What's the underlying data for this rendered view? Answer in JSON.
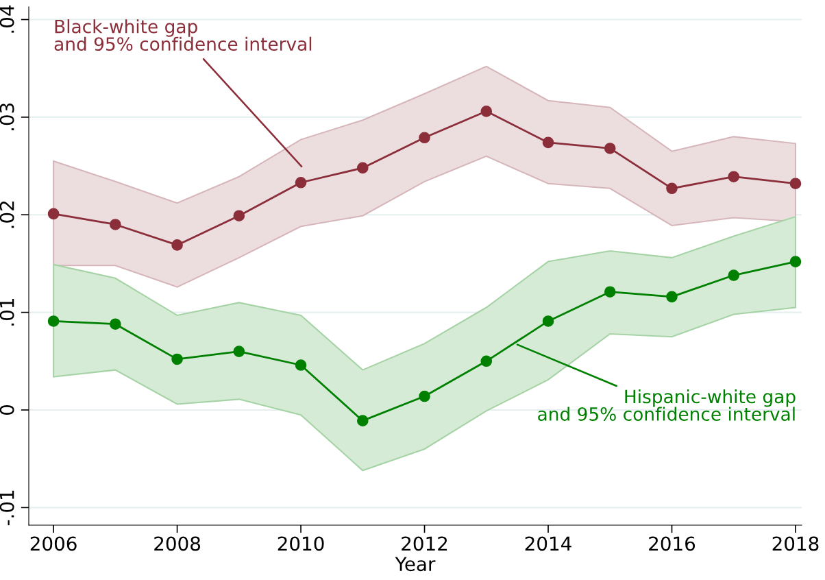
{
  "chart_data": {
    "type": "line",
    "xlabel": "Year",
    "x": [
      2006,
      2007,
      2008,
      2009,
      2010,
      2011,
      2012,
      2013,
      2014,
      2015,
      2016,
      2017,
      2018
    ],
    "series": [
      {
        "color": "#8b2e3a",
        "values": [
          0.0201,
          0.019,
          0.0169,
          0.0199,
          0.0233,
          0.0248,
          0.0279,
          0.0306,
          0.0274,
          0.0268,
          0.0227,
          0.0239,
          0.0232
        ],
        "lower": [
          0.0148,
          0.0148,
          0.0126,
          0.0156,
          0.0188,
          0.0199,
          0.0234,
          0.026,
          0.0232,
          0.0227,
          0.0189,
          0.0197,
          0.0193
        ],
        "upper": [
          0.0255,
          0.0234,
          0.0212,
          0.0239,
          0.0277,
          0.0297,
          0.0324,
          0.0352,
          0.0317,
          0.031,
          0.0265,
          0.028,
          0.0273
        ]
      },
      {
        "color": "#008000",
        "values": [
          0.0091,
          0.0088,
          0.0052,
          0.006,
          0.0046,
          -0.0011,
          0.0014,
          0.005,
          0.0091,
          0.0121,
          0.0116,
          0.0138,
          0.0152
        ],
        "lower": [
          0.0034,
          0.0041,
          0.0006,
          0.0011,
          -0.0005,
          -0.0062,
          -0.004,
          -0.0001,
          0.0031,
          0.0078,
          0.0075,
          0.0098,
          0.0105
        ],
        "upper": [
          0.0149,
          0.0135,
          0.0097,
          0.011,
          0.0097,
          0.0041,
          0.0068,
          0.0105,
          0.0152,
          0.0163,
          0.0156,
          0.0178,
          0.0198
        ]
      }
    ],
    "annotations": [
      "Black-white gap\nand 95% confidence interval",
      {
        "text": "Hispanic-white gap\nand 95% confidence interval",
        "x": 2013.5,
        "y": 0.0067
      }
    ],
    "xlim": [
      2005.6,
      2018.1
    ],
    "xticks": [
      2006,
      2008,
      2010,
      2012,
      2014,
      2016,
      2018
    ],
    "ylim": [
      -0.0118,
      0.0413
    ],
    "yticks": [
      {
        "value": -0.01,
        "label": "-.01"
      },
      {
        "value": 0,
        "label": "0"
      },
      {
        "value": 0.01,
        "label": ".01"
      },
      {
        "value": 0.02,
        "label": ".02"
      },
      {
        "value": 0.03,
        "label": ".03"
      },
      {
        "value": 0.04,
        "label": ".04"
      }
    ],
    "grid": "y",
    "marker": "circle",
    "line_style": "solid",
    "legend": false
  }
}
